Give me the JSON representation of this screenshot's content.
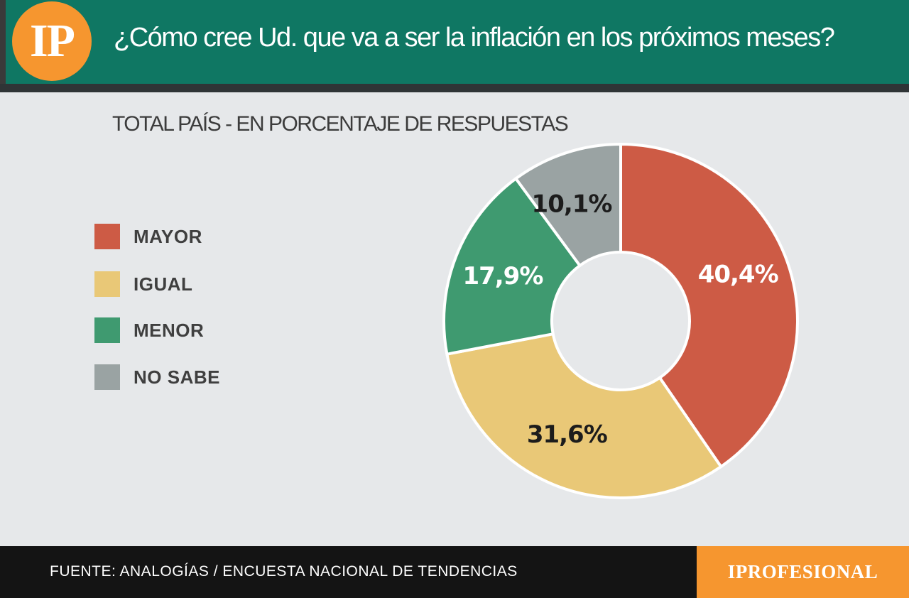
{
  "header": {
    "logo_text": "IP",
    "title": "¿Cómo cree Ud. que va a ser la inflación en los próximos meses?"
  },
  "colors": {
    "header_bg": "#0f7763",
    "logo_bg": "#f6962f",
    "background": "#e6e8ea"
  },
  "chart_data": {
    "type": "pie",
    "subtitle": "TOTAL PAÍS - EN PORCENTAJE DE RESPUESTAS",
    "categories": [
      "MAYOR",
      "IGUAL",
      "MENOR",
      "NO SABE"
    ],
    "values": [
      40.4,
      31.6,
      17.9,
      10.1
    ],
    "labels": [
      "40,4%",
      "31,6%",
      "17,9%",
      "10,1%"
    ],
    "colors": [
      "#cd5b45",
      "#e9c877",
      "#3f9a70",
      "#9aa3a3"
    ],
    "label_colors": [
      "#ffffff",
      "#1c1c1c",
      "#ffffff",
      "#1c1c1c"
    ],
    "donut": true,
    "legend_position": "left"
  },
  "footer": {
    "source": "FUENTE: ANALOGÍAS / ENCUESTA NACIONAL DE TENDENCIAS",
    "brand": "IPROFESIONAL"
  }
}
